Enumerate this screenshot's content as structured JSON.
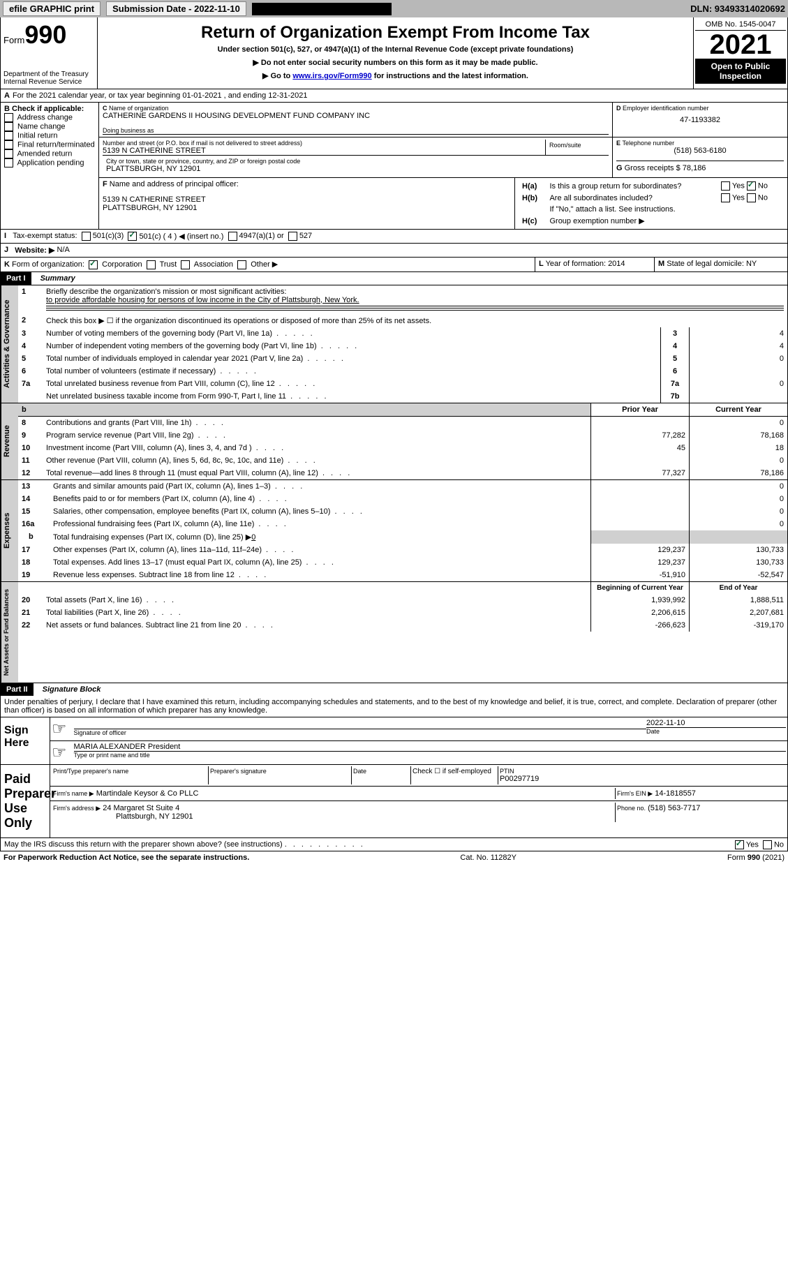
{
  "top_bar": {
    "efile": "efile GRAPHIC print",
    "submission": "Submission Date - 2022-11-10",
    "dln": "DLN: 93493314020692"
  },
  "header": {
    "form_label": "Form",
    "form_number": "990",
    "dept": "Department of the Treasury",
    "irs": "Internal Revenue Service",
    "title": "Return of Organization Exempt From Income Tax",
    "subtitle1": "Under section 501(c), 527, or 4947(a)(1) of the Internal Revenue Code (except private foundations)",
    "subtitle2": "▶ Do not enter social security numbers on this form as it may be made public.",
    "subtitle3": "▶ Go to ",
    "link": "www.irs.gov/Form990",
    "subtitle3b": " for instructions and the latest information.",
    "omb": "OMB No. 1545-0047",
    "year": "2021",
    "inspection": "Open to Public Inspection"
  },
  "section_a": {
    "period": "For the 2021 calendar year, or tax year beginning 01-01-2021    , and ending 12-31-2021",
    "check_label": "Check if applicable:",
    "checks": [
      "Address change",
      "Name change",
      "Initial return",
      "Final return/terminated",
      "Amended return",
      "Application pending"
    ],
    "name_label": "Name of organization",
    "org_name": "CATHERINE GARDENS II HOUSING DEVELOPMENT FUND COMPANY INC",
    "dba_label": "Doing business as",
    "address_label": "Number and street (or P.O. box if mail is not delivered to street address)",
    "address": "5139 N CATHERINE STREET",
    "room_label": "Room/suite",
    "city_label": "City or town, state or province, country, and ZIP or foreign postal code",
    "city": "PLATTSBURGH, NY  12901",
    "ein_label": "Employer identification number",
    "ein": "47-1193382",
    "phone_label": "Telephone number",
    "phone": "(518) 563-6180",
    "gross_label": "Gross receipts $",
    "gross": "78,186",
    "officer_label": "Name and address of principal officer:",
    "officer_addr1": "5139 N CATHERINE STREET",
    "officer_addr2": "PLATTSBURGH, NY  12901",
    "tax_exempt_label": "Tax-exempt status:",
    "website_label": "Website: ▶",
    "website": "N/A",
    "ha_label": "Is this a group return for subordinates?",
    "hb_label": "Are all subordinates included?",
    "hb_note": "If \"No,\" attach a list. See instructions.",
    "hc_label": "Group exemption number ▶",
    "form_org_label": "Form of organization:",
    "year_formation_label": "Year of formation:",
    "year_formation": "2014",
    "domicile_label": "State of legal domicile:",
    "domicile": "NY"
  },
  "part1": {
    "header": "Part I",
    "title": "Summary",
    "line1": "Briefly describe the organization's mission or most significant activities:",
    "mission": "to provide affordable housing for persons of low income in the City of Plattsburgh, New York.",
    "line2": "Check this box ▶ ☐  if the organization discontinued its operations or disposed of more than 25% of its net assets.",
    "lines": [
      {
        "num": "3",
        "text": "Number of voting members of the governing body (Part VI, line 1a)",
        "box": "3",
        "val": "4"
      },
      {
        "num": "4",
        "text": "Number of independent voting members of the governing body (Part VI, line 1b)",
        "box": "4",
        "val": "4"
      },
      {
        "num": "5",
        "text": "Total number of individuals employed in calendar year 2021 (Part V, line 2a)",
        "box": "5",
        "val": "0"
      },
      {
        "num": "6",
        "text": "Total number of volunteers (estimate if necessary)",
        "box": "6",
        "val": ""
      },
      {
        "num": "7a",
        "text": "Total unrelated business revenue from Part VIII, column (C), line 12",
        "box": "7a",
        "val": "0"
      },
      {
        "num": "",
        "text": "Net unrelated business taxable income from Form 990-T, Part I, line 11",
        "box": "7b",
        "val": ""
      }
    ],
    "prior_header": "Prior Year",
    "current_header": "Current Year",
    "fin_lines": [
      {
        "num": "8",
        "text": "Contributions and grants (Part VIII, line 1h)",
        "prior": "",
        "curr": "0"
      },
      {
        "num": "9",
        "text": "Program service revenue (Part VIII, line 2g)",
        "prior": "77,282",
        "curr": "78,168"
      },
      {
        "num": "10",
        "text": "Investment income (Part VIII, column (A), lines 3, 4, and 7d )",
        "prior": "45",
        "curr": "18"
      },
      {
        "num": "11",
        "text": "Other revenue (Part VIII, column (A), lines 5, 6d, 8c, 9c, 10c, and 11e)",
        "prior": "",
        "curr": "0"
      },
      {
        "num": "12",
        "text": "Total revenue—add lines 8 through 11 (must equal Part VIII, column (A), line 12)",
        "prior": "77,327",
        "curr": "78,186"
      },
      {
        "num": "13",
        "text": "Grants and similar amounts paid (Part IX, column (A), lines 1–3)",
        "prior": "",
        "curr": "0"
      },
      {
        "num": "14",
        "text": "Benefits paid to or for members (Part IX, column (A), line 4)",
        "prior": "",
        "curr": "0"
      },
      {
        "num": "15",
        "text": "Salaries, other compensation, employee benefits (Part IX, column (A), lines 5–10)",
        "prior": "",
        "curr": "0"
      },
      {
        "num": "16a",
        "text": "Professional fundraising fees (Part IX, column (A), line 11e)",
        "prior": "",
        "curr": "0"
      }
    ],
    "line16b": "Total fundraising expenses (Part IX, column (D), line 25) ▶",
    "line16b_val": "0",
    "fin_lines2": [
      {
        "num": "17",
        "text": "Other expenses (Part IX, column (A), lines 11a–11d, 11f–24e)",
        "prior": "129,237",
        "curr": "130,733"
      },
      {
        "num": "18",
        "text": "Total expenses. Add lines 13–17 (must equal Part IX, column (A), line 25)",
        "prior": "129,237",
        "curr": "130,733"
      },
      {
        "num": "19",
        "text": "Revenue less expenses. Subtract line 18 from line 12",
        "prior": "-51,910",
        "curr": "-52,547"
      }
    ],
    "begin_header": "Beginning of Current Year",
    "end_header": "End of Year",
    "asset_lines": [
      {
        "num": "20",
        "text": "Total assets (Part X, line 16)",
        "prior": "1,939,992",
        "curr": "1,888,511"
      },
      {
        "num": "21",
        "text": "Total liabilities (Part X, line 26)",
        "prior": "2,206,615",
        "curr": "2,207,681"
      },
      {
        "num": "22",
        "text": "Net assets or fund balances. Subtract line 21 from line 20",
        "prior": "-266,623",
        "curr": "-319,170"
      }
    ]
  },
  "part2": {
    "header": "Part II",
    "title": "Signature Block",
    "penalty": "Under penalties of perjury, I declare that I have examined this return, including accompanying schedules and statements, and to the best of my knowledge and belief, it is true, correct, and complete. Declaration of preparer (other than officer) is based on all information of which preparer has any knowledge.",
    "sign_here": "Sign Here",
    "sig_officer": "Signature of officer",
    "sig_date": "2022-11-10",
    "date_label": "Date",
    "officer_name": "MARIA ALEXANDER  President",
    "type_name": "Type or print name and title",
    "paid": "Paid Preparer Use Only",
    "prep_name_label": "Print/Type preparer's name",
    "prep_sig_label": "Preparer's signature",
    "check_if": "Check ☐ if self-employed",
    "ptin_label": "PTIN",
    "ptin": "P00297719",
    "firm_name_label": "Firm's name    ▶",
    "firm_name": "Martindale Keysor & Co PLLC",
    "firm_ein_label": "Firm's EIN ▶",
    "firm_ein": "14-1818557",
    "firm_addr_label": "Firm's address ▶",
    "firm_addr1": "24 Margaret St Suite 4",
    "firm_addr2": "Plattsburgh, NY  12901",
    "firm_phone_label": "Phone no.",
    "firm_phone": "(518) 563-7717",
    "discuss": "May the IRS discuss this return with the preparer shown above? (see instructions)"
  },
  "footer": {
    "paperwork": "For Paperwork Reduction Act Notice, see the separate instructions.",
    "cat": "Cat. No. 11282Y",
    "form": "Form 990 (2021)"
  },
  "labels": {
    "activities": "Activities & Governance",
    "revenue": "Revenue",
    "expenses": "Expenses",
    "netassets": "Net Assets or Fund Balances"
  }
}
